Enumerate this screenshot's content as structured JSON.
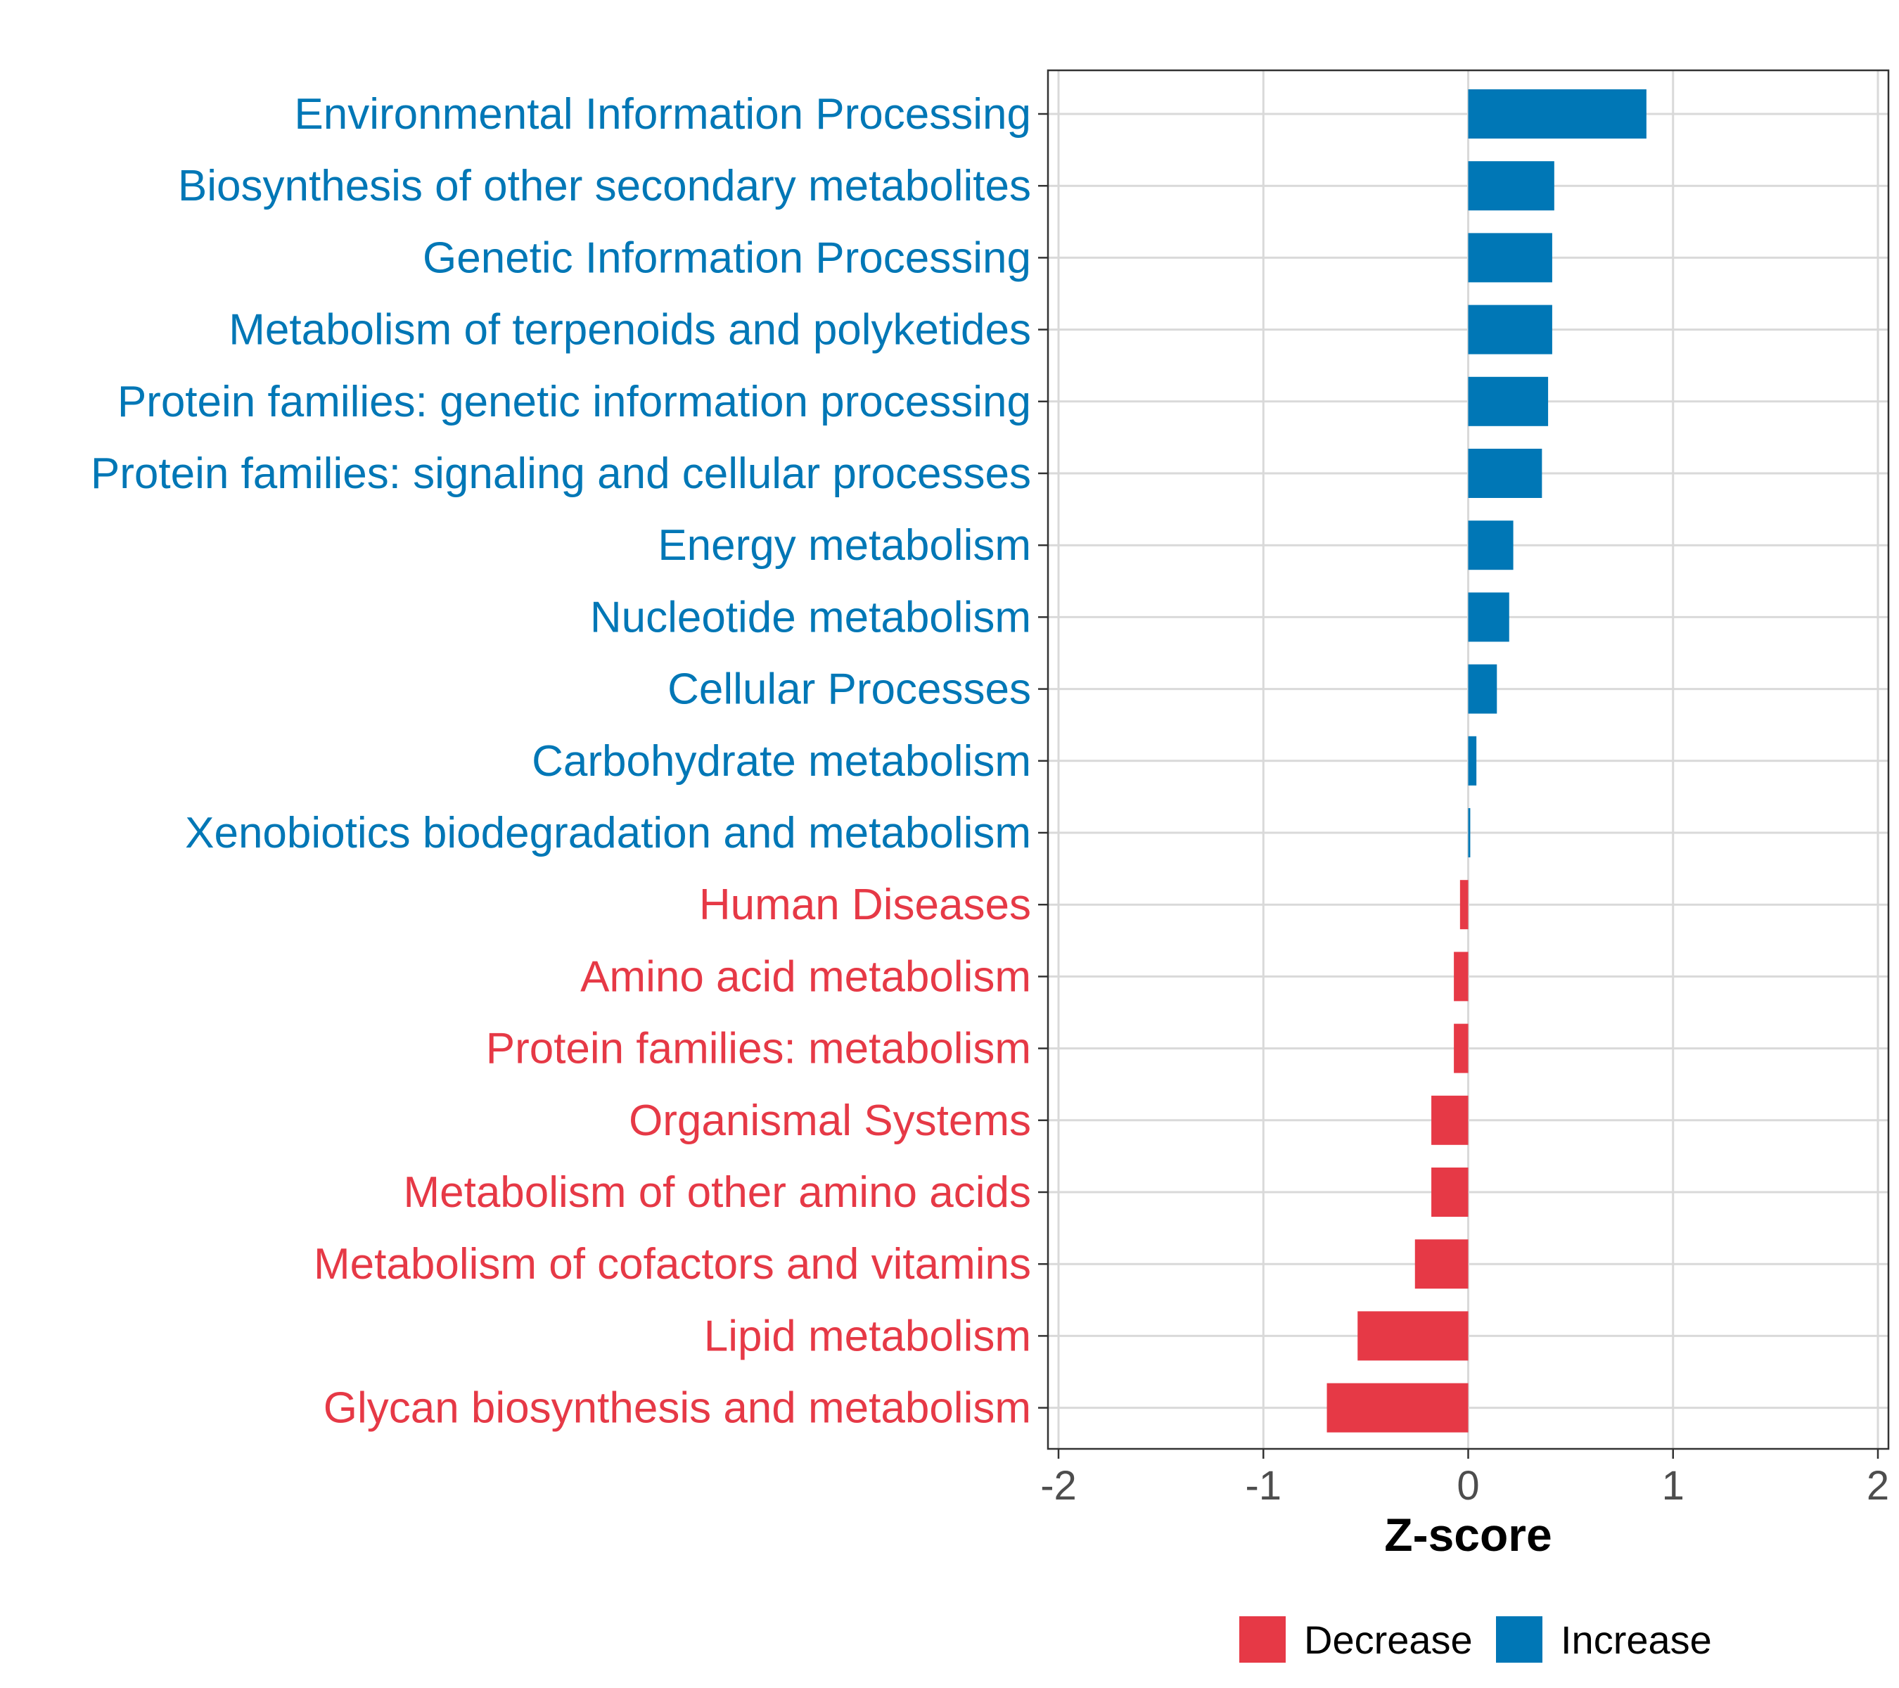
{
  "chart_data": {
    "type": "bar",
    "orientation": "horizontal",
    "title": "",
    "xlabel": "Z-score",
    "ylabel": "",
    "xlim": [
      -2,
      2
    ],
    "xticks": [
      -2,
      -1,
      0,
      1,
      2
    ],
    "xtick_labels": [
      "-2",
      "-1",
      "0",
      "1",
      "2"
    ],
    "grid": true,
    "legend_position": "bottom",
    "colors": {
      "Decrease": "#e63946",
      "Increase": "#0077b6"
    },
    "legend": [
      {
        "label": "Decrease",
        "color": "#e63946"
      },
      {
        "label": "Increase",
        "color": "#0077b6"
      }
    ],
    "categories": [
      "Environmental Information Processing",
      "Biosynthesis of other secondary metabolites",
      "Genetic Information Processing",
      "Metabolism of terpenoids and polyketides",
      "Protein families: genetic information processing",
      "Protein families: signaling and cellular processes",
      "Energy metabolism",
      "Nucleotide metabolism",
      "Cellular Processes",
      "Carbohydrate metabolism",
      "Xenobiotics biodegradation and metabolism",
      "Human Diseases",
      "Amino acid metabolism",
      "Protein families: metabolism",
      "Organismal Systems",
      "Metabolism of other amino acids",
      "Metabolism of cofactors and vitamins",
      "Lipid metabolism",
      "Glycan biosynthesis and metabolism"
    ],
    "values": [
      0.87,
      0.42,
      0.41,
      0.41,
      0.39,
      0.36,
      0.22,
      0.2,
      0.14,
      0.04,
      0.01,
      -0.04,
      -0.07,
      -0.07,
      -0.18,
      -0.18,
      -0.26,
      -0.54,
      -0.69
    ],
    "groups": [
      "Increase",
      "Increase",
      "Increase",
      "Increase",
      "Increase",
      "Increase",
      "Increase",
      "Increase",
      "Increase",
      "Increase",
      "Increase",
      "Decrease",
      "Decrease",
      "Decrease",
      "Decrease",
      "Decrease",
      "Decrease",
      "Decrease",
      "Decrease"
    ]
  }
}
